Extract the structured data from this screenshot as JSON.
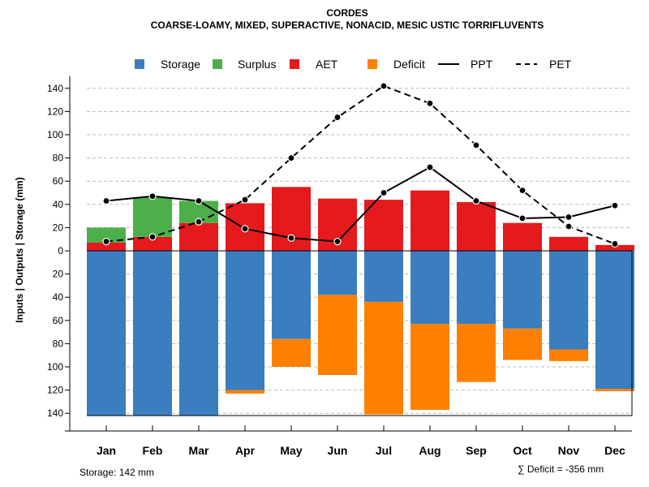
{
  "chart_data": {
    "type": "bar",
    "title": "CORDES",
    "subtitle": "COARSE-LOAMY, MIXED, SUPERACTIVE, NONACID, MESIC USTIC TORRIFLUVENTS",
    "ylabel": "Inputs | Outputs | Storage    (mm)",
    "categories": [
      "Jan",
      "Feb",
      "Mar",
      "Apr",
      "May",
      "Jun",
      "Jul",
      "Aug",
      "Sep",
      "Oct",
      "Nov",
      "Dec"
    ],
    "upper_ticks": [
      "140",
      "120",
      "100",
      "80",
      "60",
      "40",
      "20",
      "0"
    ],
    "lower_ticks": [
      "20",
      "40",
      "60",
      "80",
      "100",
      "120",
      "140"
    ],
    "ylim": [
      -140,
      140
    ],
    "legend": {
      "storage": "Storage",
      "surplus": "Surplus",
      "aet": "AET",
      "deficit": "Deficit",
      "ppt": "PPT",
      "pet": "PET"
    },
    "series": [
      {
        "name": "AET",
        "values": [
          7,
          12,
          24,
          41,
          55,
          45,
          44,
          52,
          42,
          24,
          12,
          5
        ]
      },
      {
        "name": "Surplus",
        "values": [
          13,
          34,
          19,
          0,
          0,
          0,
          0,
          0,
          0,
          0,
          0,
          0
        ]
      },
      {
        "name": "Storage",
        "values": [
          142,
          142,
          142,
          120,
          76,
          38,
          44,
          63,
          63,
          67,
          85,
          119
        ]
      },
      {
        "name": "Deficit",
        "values": [
          0,
          0,
          0,
          3,
          24,
          69,
          97,
          74,
          50,
          27,
          10,
          2
        ]
      },
      {
        "name": "PPT",
        "values": [
          43,
          47,
          43,
          19,
          11,
          8,
          50,
          72,
          43,
          28,
          29,
          39
        ]
      },
      {
        "name": "PET",
        "values": [
          8,
          12,
          25,
          44,
          80,
          115,
          142,
          127,
          91,
          52,
          21,
          6
        ]
      }
    ],
    "colors": {
      "storage": "#3A7EBF",
      "surplus": "#4DAF4A",
      "aet": "#E41A1C",
      "deficit": "#FF7F00",
      "line": "#000000",
      "grid": "#bbbbbb"
    }
  },
  "footer": {
    "storage_text": "Storage: 142 mm",
    "deficit_text": "∑ Deficit = -356 mm"
  }
}
